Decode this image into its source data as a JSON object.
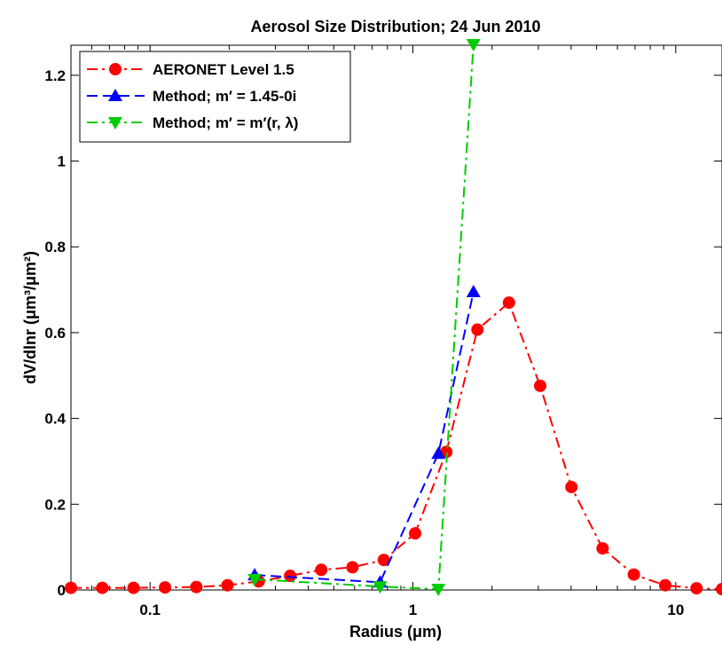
{
  "chart_data": {
    "type": "line",
    "title": "Aerosol Size Distribution; 24 Jun 2010",
    "xlabel": "Radius (μm)",
    "ylabel": "dV/dlnr (μm³/μm²)",
    "xscale": "log",
    "xlim": [
      0.05,
      15
    ],
    "ylim": [
      0,
      1.27
    ],
    "xticks": [
      {
        "value": 0.1,
        "label": "0.1"
      },
      {
        "value": 1,
        "label": "1"
      },
      {
        "value": 10,
        "label": "10"
      }
    ],
    "yticks": [
      {
        "value": 0,
        "label": "0"
      },
      {
        "value": 0.2,
        "label": "0.2"
      },
      {
        "value": 0.4,
        "label": "0.4"
      },
      {
        "value": 0.6,
        "label": "0.6"
      },
      {
        "value": 0.8,
        "label": "0.8"
      },
      {
        "value": 1,
        "label": "1"
      },
      {
        "value": 1.2,
        "label": "1.2"
      }
    ],
    "legend_position": "top-left",
    "grid": false,
    "series": [
      {
        "name": "AERONET Level 1.5",
        "color": "#ff0000",
        "line_style": "dash-dot",
        "marker": "circle",
        "x": [
          0.05,
          0.0658,
          0.0865,
          0.114,
          0.15,
          0.197,
          0.259,
          0.341,
          0.448,
          0.589,
          0.775,
          1.02,
          1.34,
          1.76,
          2.32,
          3.05,
          4.01,
          5.27,
          6.93,
          9.12,
          12.0,
          15.0
        ],
        "y": [
          0.005,
          0.005,
          0.005,
          0.006,
          0.007,
          0.011,
          0.02,
          0.033,
          0.047,
          0.053,
          0.07,
          0.132,
          0.322,
          0.607,
          0.67,
          0.476,
          0.24,
          0.097,
          0.036,
          0.011,
          0.004,
          0.002
        ]
      },
      {
        "name": "Method; m′ = 1.45-0i",
        "color": "#0000ff",
        "line_style": "dashed",
        "marker": "triangle-up",
        "x": [
          0.25,
          0.75,
          1.25,
          1.7
        ],
        "y": [
          0.035,
          0.018,
          0.318,
          0.695
        ]
      },
      {
        "name": "Method; m′ = m′(r, λ)",
        "color": "#00cc00",
        "line_style": "dash-dot",
        "marker": "triangle-down",
        "x": [
          0.25,
          0.75,
          1.25,
          1.7
        ],
        "y": [
          0.025,
          0.008,
          0.002,
          1.272
        ]
      }
    ]
  }
}
